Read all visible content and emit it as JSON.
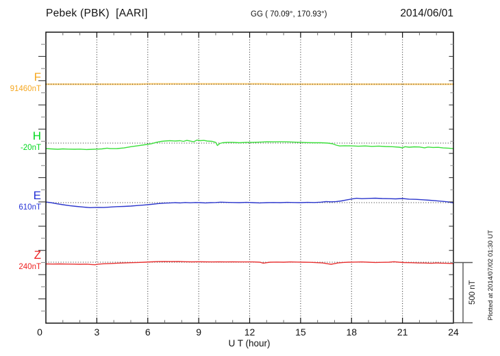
{
  "chart_data": {
    "type": "line",
    "title": "Pebek (PBK)  [AARI]",
    "station": "Pebek",
    "station_code": "PBK",
    "institute": "AARI",
    "coordinates": "GG ( 70.09°, 170.93°)",
    "date": "2014/06/01",
    "xlabel": "U T (hour)",
    "x_range": [
      0,
      24
    ],
    "x_ticks": [
      0,
      3,
      6,
      9,
      12,
      15,
      18,
      21,
      24
    ],
    "grid": "dotted vertical lines every 3 hours; dotted horizontal baseline for each channel",
    "legend_position": "left margin channel labels",
    "y_scale": {
      "per_minor_tick_nT": 100,
      "scale_bar_label": "500 nT",
      "scale_bar_nT": 500
    },
    "plotted_note": "Plotted at 2014/07/02 01:30 UT",
    "series": [
      {
        "name": "F",
        "baseline_value_label": "91460nT",
        "baseline_nT": 91460,
        "label_color": "#F6A821",
        "line_color": "#FFD27F",
        "line_width": 2.4,
        "points_hour_offset_nT": [
          [
            0,
            0
          ],
          [
            1,
            0
          ],
          [
            2,
            0
          ],
          [
            3,
            0
          ],
          [
            4,
            0
          ],
          [
            5,
            0
          ],
          [
            5.5,
            0
          ],
          [
            6,
            2
          ],
          [
            6.5,
            3
          ],
          [
            7,
            2
          ],
          [
            7.5,
            3
          ],
          [
            8,
            2
          ],
          [
            8.5,
            3
          ],
          [
            9,
            3
          ],
          [
            9.5,
            2
          ],
          [
            10,
            3
          ],
          [
            10.5,
            2
          ],
          [
            11,
            3
          ],
          [
            11.5,
            2
          ],
          [
            12,
            2
          ],
          [
            12.5,
            3
          ],
          [
            13,
            2
          ],
          [
            13.5,
            0
          ],
          [
            14,
            0
          ],
          [
            15,
            0
          ],
          [
            16,
            0
          ],
          [
            17,
            0
          ],
          [
            18,
            0
          ],
          [
            19,
            0
          ],
          [
            20,
            0
          ],
          [
            21,
            0
          ],
          [
            22,
            0
          ],
          [
            23,
            0
          ],
          [
            24,
            0
          ]
        ]
      },
      {
        "name": "H",
        "baseline_value_label": "-20nT",
        "baseline_nT": -20,
        "label_color": "#00D81E",
        "line_color": "#3ADF3A",
        "line_width": 1.4,
        "points_hour_offset_nT": [
          [
            0,
            -45
          ],
          [
            0.3,
            -48
          ],
          [
            0.7,
            -51
          ],
          [
            1,
            -48
          ],
          [
            1.3,
            -50
          ],
          [
            1.7,
            -51
          ],
          [
            2,
            -50
          ],
          [
            2.4,
            -53
          ],
          [
            2.8,
            -51
          ],
          [
            3,
            -50
          ],
          [
            3.3,
            -48
          ],
          [
            3.6,
            -42
          ],
          [
            3.8,
            -46
          ],
          [
            4.2,
            -45
          ],
          [
            4.6,
            -40
          ],
          [
            5,
            -30
          ],
          [
            5.4,
            -22
          ],
          [
            5.8,
            -14
          ],
          [
            6.2,
            -6
          ],
          [
            6.5,
            6
          ],
          [
            6.8,
            14
          ],
          [
            7,
            17
          ],
          [
            7.3,
            20
          ],
          [
            7.6,
            17
          ],
          [
            7.9,
            20
          ],
          [
            8.1,
            14
          ],
          [
            8.3,
            22
          ],
          [
            8.5,
            17
          ],
          [
            8.7,
            11
          ],
          [
            8.9,
            25
          ],
          [
            9.1,
            20
          ],
          [
            9.3,
            22
          ],
          [
            9.5,
            17
          ],
          [
            9.8,
            14
          ],
          [
            10,
            6
          ],
          [
            10.1,
            -20
          ],
          [
            10.25,
            -3
          ],
          [
            10.4,
            3
          ],
          [
            10.7,
            6
          ],
          [
            11,
            6
          ],
          [
            11.4,
            3
          ],
          [
            11.8,
            6
          ],
          [
            12.2,
            6
          ],
          [
            12.6,
            8
          ],
          [
            13,
            11
          ],
          [
            13.4,
            10
          ],
          [
            13.8,
            11
          ],
          [
            14.2,
            10
          ],
          [
            14.6,
            8
          ],
          [
            15,
            6
          ],
          [
            15.4,
            4
          ],
          [
            15.8,
            3
          ],
          [
            16.2,
            3
          ],
          [
            16.6,
            0
          ],
          [
            16.9,
            -6
          ],
          [
            17.1,
            -17
          ],
          [
            17.3,
            -24
          ],
          [
            17.6,
            -22
          ],
          [
            18,
            -23
          ],
          [
            18.4,
            -26
          ],
          [
            18.8,
            -24
          ],
          [
            19.2,
            -27
          ],
          [
            19.6,
            -25
          ],
          [
            20,
            -28
          ],
          [
            20.4,
            -30
          ],
          [
            20.8,
            -34
          ],
          [
            21,
            -39
          ],
          [
            21.15,
            -30
          ],
          [
            21.4,
            -34
          ],
          [
            21.7,
            -31
          ],
          [
            22,
            -32
          ],
          [
            22.3,
            -39
          ],
          [
            22.5,
            -33
          ],
          [
            22.8,
            -36
          ],
          [
            23.1,
            -35
          ],
          [
            23.4,
            -40
          ],
          [
            23.7,
            -42
          ],
          [
            24,
            -46
          ]
        ]
      },
      {
        "name": "E",
        "baseline_value_label": "610nT",
        "baseline_nT": 610,
        "label_color": "#2431D6",
        "line_color": "#2A35CC",
        "line_width": 1.4,
        "points_hour_offset_nT": [
          [
            0,
            5
          ],
          [
            0.3,
            0
          ],
          [
            0.6,
            -8
          ],
          [
            1,
            -17
          ],
          [
            1.4,
            -25
          ],
          [
            1.8,
            -31
          ],
          [
            2.2,
            -36
          ],
          [
            2.6,
            -41
          ],
          [
            3,
            -39
          ],
          [
            3.4,
            -40
          ],
          [
            3.8,
            -36
          ],
          [
            4.2,
            -33
          ],
          [
            4.6,
            -31
          ],
          [
            5,
            -28
          ],
          [
            5.4,
            -24
          ],
          [
            5.8,
            -19
          ],
          [
            6.2,
            -14
          ],
          [
            6.6,
            -8
          ],
          [
            7,
            -4
          ],
          [
            7.3,
            -2
          ],
          [
            7.6,
            0
          ],
          [
            7.9,
            -2
          ],
          [
            8.2,
            1
          ],
          [
            8.5,
            -1
          ],
          [
            8.8,
            1
          ],
          [
            9.1,
            0
          ],
          [
            9.4,
            -2
          ],
          [
            9.7,
            0
          ],
          [
            10,
            1
          ],
          [
            10.3,
            4
          ],
          [
            10.6,
            2
          ],
          [
            11,
            1
          ],
          [
            11.4,
            0
          ],
          [
            11.8,
            2
          ],
          [
            12.2,
            0
          ],
          [
            12.6,
            -2
          ],
          [
            13,
            0
          ],
          [
            13.4,
            1
          ],
          [
            13.8,
            0
          ],
          [
            14.2,
            2
          ],
          [
            14.6,
            1
          ],
          [
            15,
            0
          ],
          [
            15.4,
            2
          ],
          [
            15.8,
            1
          ],
          [
            16.2,
            4
          ],
          [
            16.5,
            9
          ],
          [
            16.8,
            7
          ],
          [
            17.1,
            9
          ],
          [
            17.4,
            14
          ],
          [
            17.7,
            22
          ],
          [
            18,
            30
          ],
          [
            18.3,
            36
          ],
          [
            18.6,
            33
          ],
          [
            19,
            35
          ],
          [
            19.4,
            37
          ],
          [
            19.8,
            34
          ],
          [
            20.2,
            33
          ],
          [
            20.6,
            31
          ],
          [
            21,
            34
          ],
          [
            21.4,
            29
          ],
          [
            21.8,
            27
          ],
          [
            22.2,
            24
          ],
          [
            22.6,
            20
          ],
          [
            23,
            15
          ],
          [
            23.4,
            10
          ],
          [
            23.7,
            6
          ],
          [
            24,
            -2
          ]
        ]
      },
      {
        "name": "Z",
        "baseline_value_label": "240nT",
        "baseline_nT": 240,
        "label_color": "#EE2020",
        "line_color": "#E83030",
        "line_width": 1.4,
        "points_hour_offset_nT": [
          [
            0,
            -14
          ],
          [
            0.4,
            -15
          ],
          [
            0.8,
            -14
          ],
          [
            1.2,
            -15
          ],
          [
            1.6,
            -16
          ],
          [
            2,
            -17
          ],
          [
            2.4,
            -16
          ],
          [
            2.7,
            -19
          ],
          [
            2.9,
            -21
          ],
          [
            3.1,
            -16
          ],
          [
            3.4,
            -13
          ],
          [
            3.8,
            -11
          ],
          [
            4.2,
            -8
          ],
          [
            4.6,
            -6
          ],
          [
            5,
            -4
          ],
          [
            5.4,
            -2
          ],
          [
            5.8,
            0
          ],
          [
            6.2,
            3
          ],
          [
            6.6,
            5
          ],
          [
            7,
            6
          ],
          [
            7.4,
            5
          ],
          [
            7.8,
            6
          ],
          [
            8.2,
            4
          ],
          [
            8.6,
            3
          ],
          [
            9,
            4
          ],
          [
            9.4,
            3
          ],
          [
            9.8,
            2
          ],
          [
            10.2,
            3
          ],
          [
            10.6,
            2
          ],
          [
            11,
            3
          ],
          [
            11.4,
            2
          ],
          [
            11.8,
            2
          ],
          [
            12.2,
            2
          ],
          [
            12.6,
            0
          ],
          [
            12.8,
            -8
          ],
          [
            13,
            -4
          ],
          [
            13.2,
            0
          ],
          [
            13.6,
            1
          ],
          [
            14,
            0
          ],
          [
            14.4,
            2
          ],
          [
            14.8,
            1
          ],
          [
            15.2,
            0
          ],
          [
            15.6,
            -1
          ],
          [
            16,
            -4
          ],
          [
            16.3,
            -6
          ],
          [
            16.6,
            -13
          ],
          [
            16.8,
            -17
          ],
          [
            17,
            -12
          ],
          [
            17.2,
            -6
          ],
          [
            17.5,
            -2
          ],
          [
            17.8,
            0
          ],
          [
            18.2,
            1
          ],
          [
            18.6,
            2
          ],
          [
            19,
            0
          ],
          [
            19.4,
            -2
          ],
          [
            19.8,
            -1
          ],
          [
            20.2,
            0
          ],
          [
            20.5,
            4
          ],
          [
            20.8,
            0
          ],
          [
            21.1,
            -3
          ],
          [
            21.5,
            -4
          ],
          [
            21.9,
            -6
          ],
          [
            22.3,
            -7
          ],
          [
            22.7,
            -9
          ],
          [
            23,
            -6
          ],
          [
            23.3,
            -8
          ],
          [
            23.6,
            -9
          ],
          [
            24,
            -11
          ]
        ]
      }
    ]
  }
}
